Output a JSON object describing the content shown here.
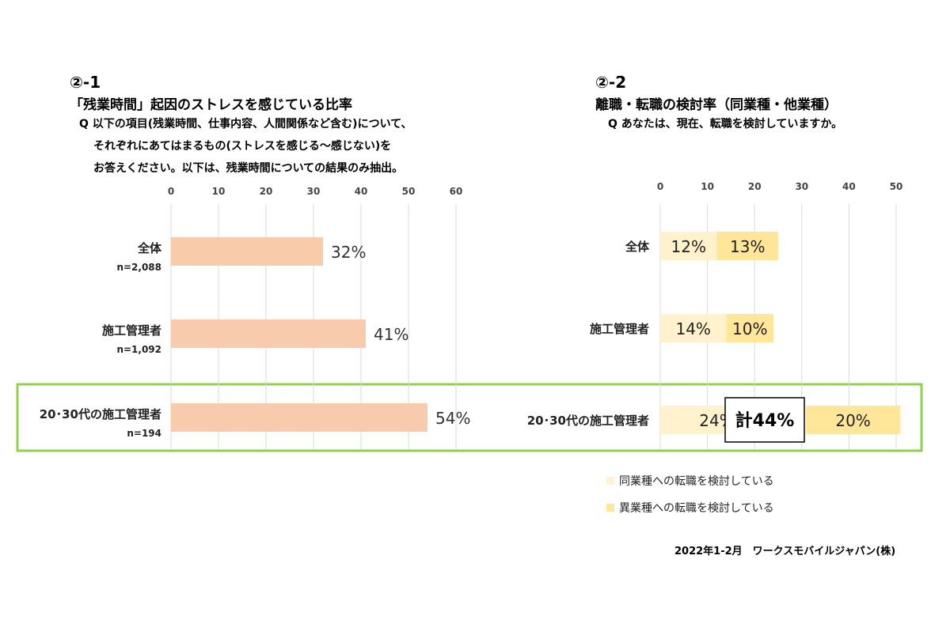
{
  "left": {
    "number": "②-1",
    "title": "「残業時間」起因のストレスを感じている比率",
    "question": [
      "Q 以下の項目(残業時間、仕事内容、人間関係など含む)について、",
      "それぞれにあてはまるもの(ストレスを感じる～感じない)を",
      "お答えください。以下は、残業時間についての結果のみ抽出。"
    ]
  },
  "right": {
    "number": "②-2",
    "title": "離職・転職の検討率（同業種・他業種）",
    "question": "Q あなたは、現在、転職を検討していますか。",
    "total_label": "計44%"
  },
  "footer": "2022年1-2月　ワークスモバイルジャパン(株)",
  "colors": {
    "bar_left": "#f8cbad",
    "same_industry": "#fff2cc",
    "other_industry": "#ffe699",
    "highlight_border": "#92d050",
    "grid": "#d9d9d9"
  },
  "chart_data": [
    {
      "type": "bar",
      "orientation": "horizontal",
      "title": "「残業時間」起因のストレスを感じている比率",
      "xlim": [
        0,
        60
      ],
      "ticks": [
        "0",
        "10",
        "20",
        "30",
        "40",
        "50",
        "60"
      ],
      "categories": [
        "全体",
        "施工管理者",
        "20･30代の施工管理者"
      ],
      "sample_sizes": [
        "n=2,088",
        "n=1,092",
        "n=194"
      ],
      "values": [
        32,
        41,
        54
      ],
      "value_labels": [
        "32%",
        "41%",
        "54%"
      ]
    },
    {
      "type": "bar",
      "orientation": "horizontal",
      "stacked": true,
      "title": "離職・転職の検討率（同業種・他業種）",
      "xlim": [
        0,
        50
      ],
      "ticks": [
        "0",
        "10",
        "20",
        "30",
        "40",
        "50"
      ],
      "categories": [
        "全体",
        "施工管理者",
        "20･30代の施工管理者"
      ],
      "series": [
        {
          "name": "同業種への転職を検討している",
          "values": [
            12,
            14,
            24
          ],
          "labels": [
            "12%",
            "14%",
            "24%"
          ]
        },
        {
          "name": "異業種への転職を検討している",
          "values": [
            13,
            10,
            20
          ],
          "labels": [
            "13%",
            "10%",
            "20%"
          ]
        }
      ]
    }
  ]
}
